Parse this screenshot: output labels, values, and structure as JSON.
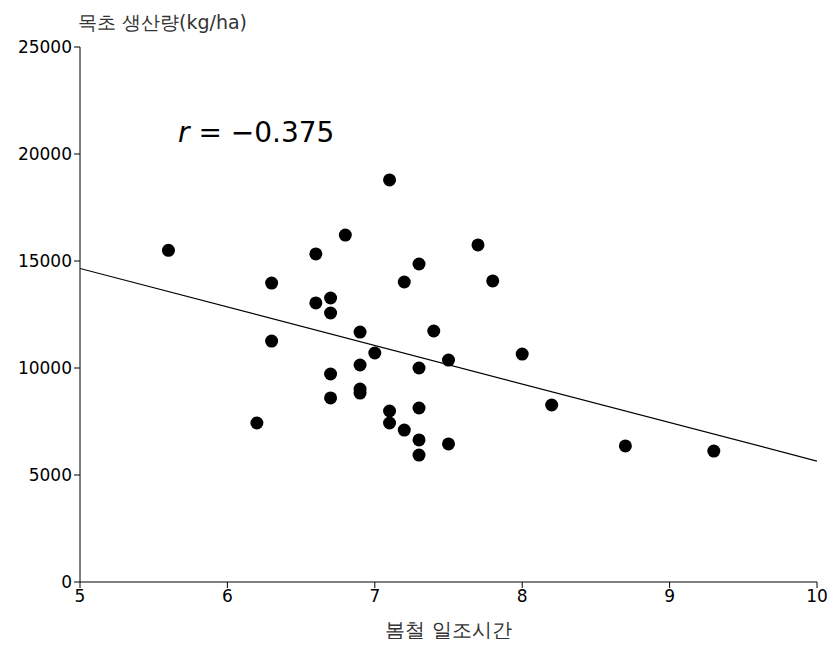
{
  "chart_data": {
    "type": "scatter",
    "y_label": "목초 생산량(kg/ha)",
    "x_label": "봄철 일조시간",
    "annotation": "r = −0.375",
    "x": [
      5.6,
      6.2,
      6.3,
      6.3,
      6.6,
      6.6,
      6.7,
      6.7,
      6.7,
      6.7,
      6.8,
      6.9,
      6.9,
      6.9,
      6.9,
      7.0,
      7.1,
      7.1,
      7.1,
      7.2,
      7.2,
      7.3,
      7.3,
      7.3,
      7.3,
      7.3,
      7.4,
      7.5,
      7.5,
      7.7,
      7.8,
      8.0,
      8.2,
      8.7,
      9.3
    ],
    "values": [
      15500,
      7430,
      13970,
      11260,
      15330,
      13040,
      13270,
      12570,
      9720,
      8600,
      16210,
      11680,
      10140,
      9020,
      8830,
      10700,
      18790,
      7990,
      7430,
      14020,
      7100,
      14860,
      10000,
      8130,
      6640,
      5930,
      11730,
      10370,
      6450,
      15750,
      14070,
      10650,
      8270,
      6360,
      6120
    ],
    "trend_line": {
      "x": [
        5,
        10
      ],
      "values": [
        14650,
        5650
      ]
    },
    "color": "#000000",
    "marker": "circle",
    "xlim": [
      5,
      10
    ],
    "ylim": [
      0,
      25000
    ],
    "xticks": [
      5,
      6,
      7,
      8,
      9,
      10
    ],
    "yticks": [
      0,
      5000,
      10000,
      15000,
      20000,
      25000
    ],
    "grid": false
  }
}
